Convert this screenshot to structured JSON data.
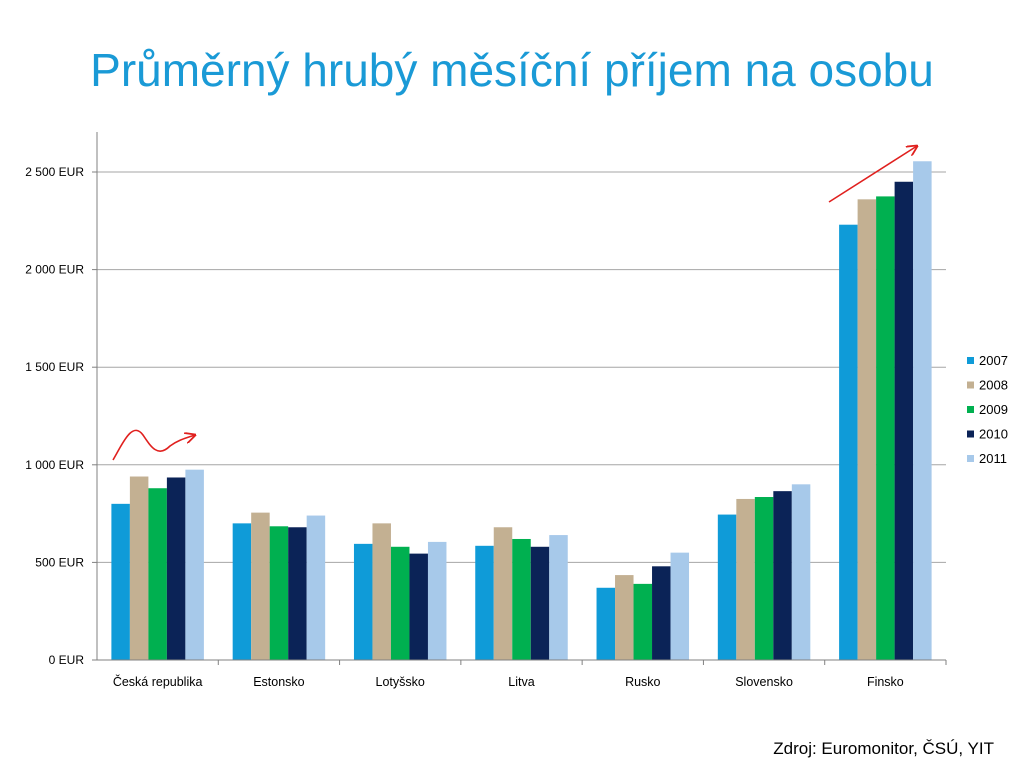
{
  "title": "Průměrný hrubý měsíční příjem na osobu",
  "source": "Zdroj: Euromonitor, ČSÚ, YIT",
  "colors": {
    "title": "#1a9ad6",
    "2007": "#0f9bd8",
    "2008": "#c3b092",
    "2009": "#00b050",
    "2010": "#0b2357",
    "2011": "#a7c9ea",
    "annotation_arrows": "#e0201e",
    "gridline": "#a6a6a6"
  },
  "chart_data": {
    "type": "bar",
    "title": "",
    "xlabel": "",
    "ylabel": "",
    "ylim": [
      0,
      2500
    ],
    "yticks": [
      0,
      500,
      1000,
      1500,
      2000,
      2500
    ],
    "ytick_labels": [
      "0 EUR",
      "500 EUR",
      "1 000 EUR",
      "1 500 EUR",
      "2 000 EUR",
      "2 500 EUR"
    ],
    "grid": true,
    "legend_position": "right",
    "categories": [
      "Česká republika",
      "Estonsko",
      "Lotyšsko",
      "Litva",
      "Rusko",
      "Slovensko",
      "Finsko"
    ],
    "series": [
      {
        "name": "2007",
        "color": "#0f9bd8",
        "values": [
          800,
          700,
          595,
          585,
          370,
          745,
          2230
        ]
      },
      {
        "name": "2008",
        "color": "#c3b092",
        "values": [
          940,
          755,
          700,
          680,
          435,
          825,
          2360
        ]
      },
      {
        "name": "2009",
        "color": "#00b050",
        "values": [
          880,
          685,
          580,
          620,
          390,
          835,
          2375
        ]
      },
      {
        "name": "2010",
        "color": "#0b2357",
        "values": [
          935,
          680,
          545,
          580,
          480,
          865,
          2450
        ]
      },
      {
        "name": "2011",
        "color": "#a7c9ea",
        "values": [
          975,
          740,
          605,
          640,
          550,
          900,
          2555
        ]
      }
    ],
    "annotations": [
      {
        "shape": "wavy-arrow",
        "near_category": "Česká republika",
        "color": "#e0201e"
      },
      {
        "shape": "rising-arrow",
        "near_category": "Finsko",
        "color": "#e0201e"
      }
    ]
  }
}
